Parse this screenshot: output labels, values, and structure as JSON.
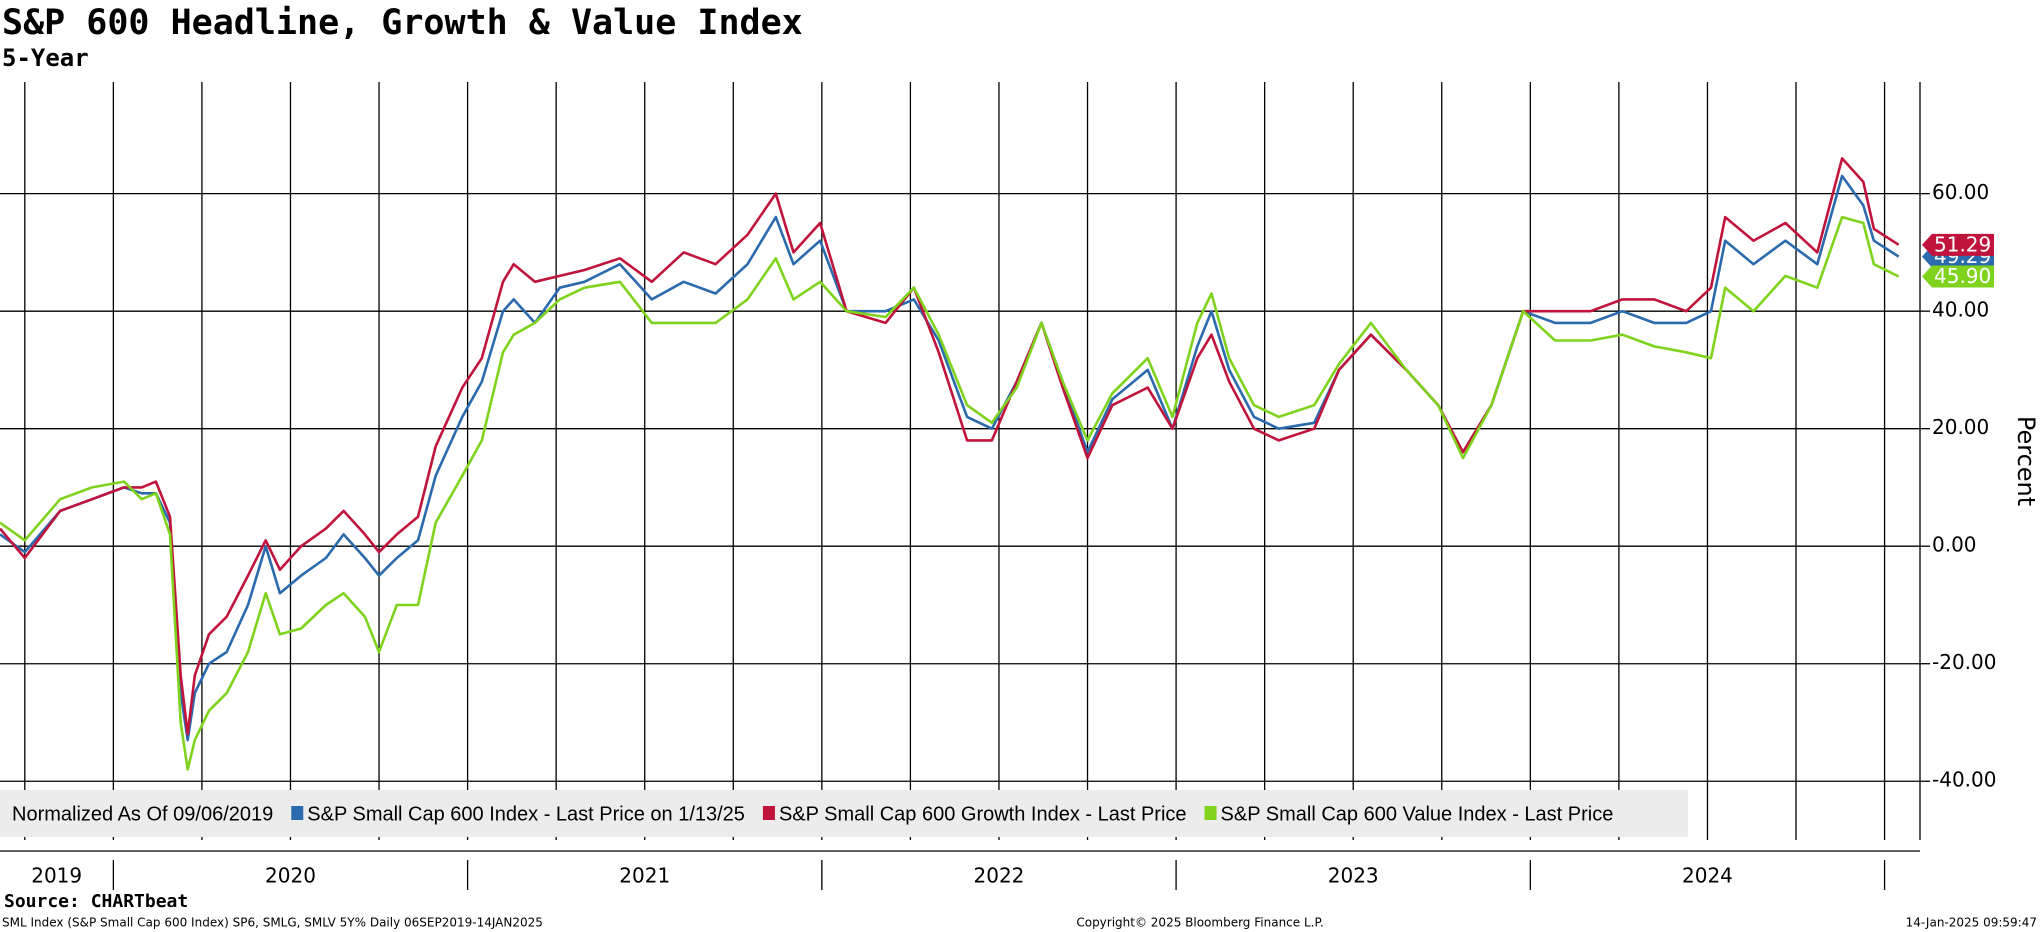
{
  "chart_data": {
    "type": "line",
    "title": "S&P 600 Headline, Growth & Value Index",
    "subtitle": "5-Year",
    "y_label": "Percent",
    "legend_note": "Normalized As Of 09/06/2019",
    "source": "Source: CHARTbeat",
    "footer_left": "SML Index (S&P Small Cap 600 Index) SP6, SMLG, SMLV 5Y%  Daily 06SEP2019-14JAN2025",
    "footer_center": "Copyright© 2025 Bloomberg Finance L.P.",
    "footer_right": "14-Jan-2025 09:59:47",
    "xlim": [
      2019.68,
      2025.1
    ],
    "xticks": [
      2020,
      2021,
      2022,
      2023,
      2024,
      2025
    ],
    "year_labels": [
      "2019",
      "2020",
      "2021",
      "2022",
      "2023",
      "2024"
    ],
    "xgrid": [
      2019.75,
      2020,
      2020.25,
      2020.5,
      2020.75,
      2021,
      2021.25,
      2021.5,
      2021.75,
      2022,
      2022.25,
      2022.5,
      2022.75,
      2023,
      2023.25,
      2023.5,
      2023.75,
      2024,
      2024.25,
      2024.5,
      2024.75,
      2025
    ],
    "ylim": [
      -50,
      79
    ],
    "yticks": [
      {
        "value": -40,
        "label": "-40.00"
      },
      {
        "value": -20,
        "label": "-20.00"
      },
      {
        "value": 0,
        "label": "0.00"
      },
      {
        "value": 20,
        "label": "20.00"
      },
      {
        "value": 40,
        "label": "40.00"
      },
      {
        "value": 60,
        "label": "60.00"
      }
    ],
    "grid": true,
    "x": [
      2019.68,
      2019.75,
      2019.85,
      2019.94,
      2020.03,
      2020.08,
      2020.12,
      2020.16,
      2020.19,
      2020.21,
      2020.23,
      2020.27,
      2020.32,
      2020.38,
      2020.43,
      2020.47,
      2020.53,
      2020.6,
      2020.65,
      2020.71,
      2020.75,
      2020.8,
      2020.86,
      2020.91,
      2020.985,
      2021.04,
      2021.1,
      2021.13,
      2021.19,
      2021.26,
      2021.33,
      2021.43,
      2021.52,
      2021.61,
      2021.7,
      2021.79,
      2021.87,
      2021.92,
      2021.995,
      2022.07,
      2022.18,
      2022.26,
      2022.33,
      2022.41,
      2022.48,
      2022.55,
      2022.62,
      2022.68,
      2022.75,
      2022.82,
      2022.92,
      2022.99,
      2023.06,
      2023.1,
      2023.15,
      2023.22,
      2023.29,
      2023.39,
      2023.46,
      2023.55,
      2023.65,
      2023.74,
      2023.81,
      2023.89,
      2023.98,
      2024.07,
      2024.17,
      2024.26,
      2024.35,
      2024.44,
      2024.51,
      2024.55,
      2024.63,
      2024.72,
      2024.81,
      2024.88,
      2024.94,
      2024.97,
      2025.04
    ],
    "series": [
      {
        "name": "S&P Small Cap 600 Index - Last Price on 1/13/25",
        "color": "#2a6aad",
        "last_label": "49.29",
        "values": [
          2,
          -1,
          6,
          8,
          10,
          9,
          9,
          4,
          -25,
          -33,
          -25,
          -20,
          -18,
          -10,
          0,
          -8,
          -5,
          -2,
          2,
          -2,
          -5,
          -2,
          1,
          12,
          22,
          28,
          40,
          42,
          38,
          44,
          45,
          48,
          42,
          45,
          43,
          48,
          56,
          48,
          52,
          40,
          40,
          42,
          35,
          22,
          20,
          28,
          38,
          28,
          16,
          25,
          30,
          20,
          34,
          40,
          30,
          22,
          20,
          21,
          30,
          36,
          30,
          24,
          16,
          24,
          40,
          38,
          38,
          40,
          38,
          38,
          40,
          52,
          48,
          52,
          48,
          63,
          58,
          52,
          49.29
        ]
      },
      {
        "name": "S&P Small Cap 600 Growth Index - Last Price",
        "color": "#c0143c",
        "last_label": "51.29",
        "values": [
          3,
          -2,
          6,
          8,
          10,
          10,
          11,
          5,
          -22,
          -32,
          -22,
          -15,
          -12,
          -5,
          1,
          -4,
          0,
          3,
          6,
          2,
          -1,
          2,
          5,
          17,
          27,
          32,
          45,
          48,
          45,
          46,
          47,
          49,
          45,
          50,
          48,
          53,
          60,
          50,
          55,
          40,
          38,
          44,
          33,
          18,
          18,
          28,
          38,
          27,
          15,
          24,
          27,
          20,
          32,
          36,
          28,
          20,
          18,
          20,
          30,
          36,
          30,
          24,
          16,
          24,
          40,
          40,
          40,
          42,
          42,
          40,
          44,
          56,
          52,
          55,
          50,
          66,
          62,
          54,
          51.29
        ]
      },
      {
        "name": "S&P Small Cap 600 Value Index - Last Price",
        "color": "#7fd31d",
        "last_label": "45.90",
        "values": [
          4,
          1,
          8,
          10,
          11,
          8,
          9,
          2,
          -30,
          -38,
          -33,
          -28,
          -25,
          -18,
          -8,
          -15,
          -14,
          -10,
          -8,
          -12,
          -18,
          -10,
          -10,
          4,
          12,
          18,
          33,
          36,
          38,
          42,
          44,
          45,
          38,
          38,
          38,
          42,
          49,
          42,
          45,
          40,
          39,
          44,
          36,
          24,
          21,
          27,
          38,
          28,
          18,
          26,
          32,
          22,
          38,
          43,
          32,
          24,
          22,
          24,
          31,
          38,
          30,
          24,
          15,
          24,
          40,
          35,
          35,
          36,
          34,
          33,
          32,
          44,
          40,
          46,
          44,
          56,
          55,
          48,
          45.9
        ]
      }
    ]
  }
}
